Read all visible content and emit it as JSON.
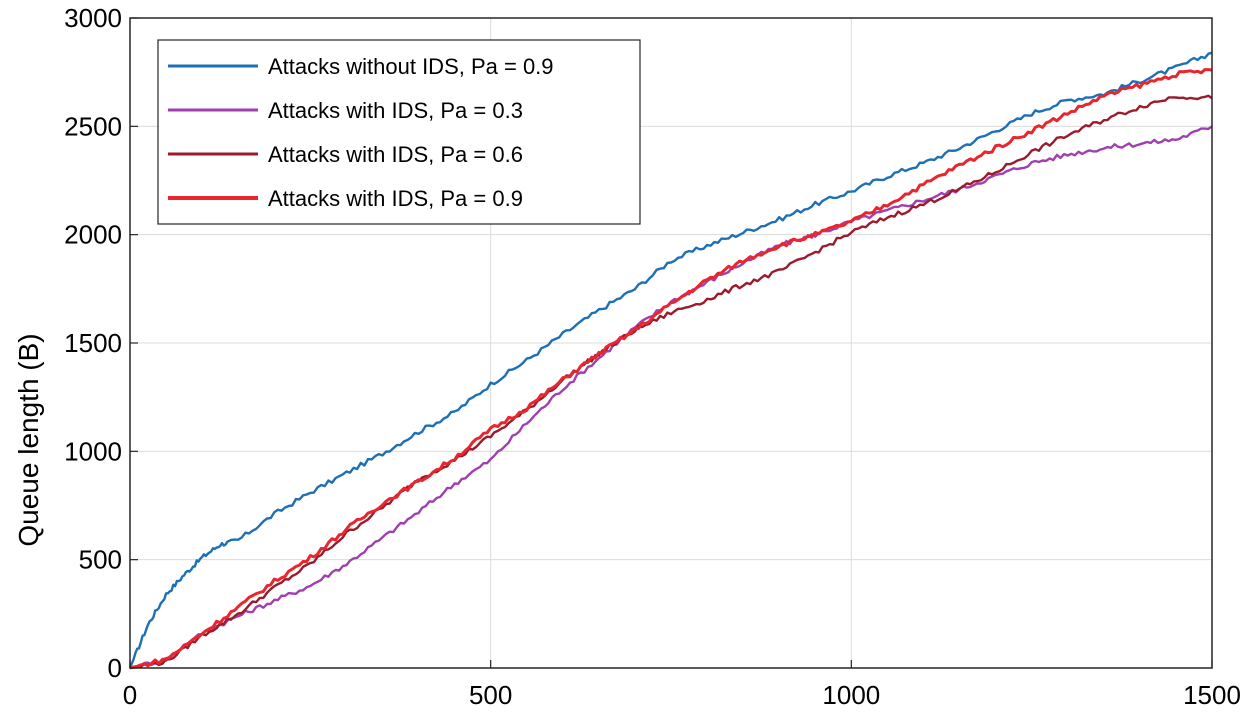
{
  "chart_data": {
    "type": "line",
    "title": "",
    "xlabel": "",
    "ylabel": "Queue length (B)",
    "xlim": [
      0,
      1500
    ],
    "ylim": [
      0,
      3000
    ],
    "xticks": [
      0,
      500,
      1000,
      1500
    ],
    "xtick_labels": [
      "0",
      "500",
      "1000",
      "1500"
    ],
    "yticks": [
      0,
      500,
      1000,
      1500,
      2000,
      2500,
      3000
    ],
    "ytick_labels": [
      "0",
      "500",
      "1000",
      "1500",
      "2000",
      "2500",
      "3000"
    ],
    "grid": true,
    "legend_position": "top-left",
    "series": [
      {
        "name": "Attacks without IDS, Pa = 0.9",
        "color": "#1f6fb5",
        "points": [
          [
            0,
            0
          ],
          [
            25,
            200
          ],
          [
            50,
            340
          ],
          [
            75,
            430
          ],
          [
            100,
            510
          ],
          [
            125,
            570
          ],
          [
            150,
            590
          ],
          [
            200,
            710
          ],
          [
            250,
            810
          ],
          [
            300,
            900
          ],
          [
            350,
            990
          ],
          [
            400,
            1090
          ],
          [
            450,
            1180
          ],
          [
            500,
            1310
          ],
          [
            550,
            1420
          ],
          [
            600,
            1540
          ],
          [
            650,
            1650
          ],
          [
            700,
            1750
          ],
          [
            750,
            1880
          ],
          [
            800,
            1950
          ],
          [
            850,
            2010
          ],
          [
            900,
            2070
          ],
          [
            950,
            2140
          ],
          [
            1000,
            2200
          ],
          [
            1050,
            2270
          ],
          [
            1100,
            2330
          ],
          [
            1150,
            2400
          ],
          [
            1200,
            2480
          ],
          [
            1250,
            2560
          ],
          [
            1300,
            2620
          ],
          [
            1350,
            2650
          ],
          [
            1400,
            2710
          ],
          [
            1450,
            2770
          ],
          [
            1500,
            2840
          ]
        ]
      },
      {
        "name": "Attacks with IDS, Pa = 0.3",
        "color": "#a040b0",
        "points": [
          [
            0,
            0
          ],
          [
            50,
            40
          ],
          [
            100,
            160
          ],
          [
            150,
            240
          ],
          [
            200,
            310
          ],
          [
            250,
            380
          ],
          [
            300,
            480
          ],
          [
            350,
            600
          ],
          [
            400,
            720
          ],
          [
            450,
            850
          ],
          [
            500,
            960
          ],
          [
            550,
            1130
          ],
          [
            600,
            1290
          ],
          [
            650,
            1430
          ],
          [
            700,
            1570
          ],
          [
            750,
            1690
          ],
          [
            800,
            1780
          ],
          [
            850,
            1870
          ],
          [
            900,
            1950
          ],
          [
            950,
            2000
          ],
          [
            1000,
            2060
          ],
          [
            1050,
            2110
          ],
          [
            1100,
            2160
          ],
          [
            1150,
            2210
          ],
          [
            1200,
            2270
          ],
          [
            1250,
            2330
          ],
          [
            1300,
            2370
          ],
          [
            1350,
            2400
          ],
          [
            1400,
            2420
          ],
          [
            1450,
            2440
          ],
          [
            1500,
            2500
          ]
        ]
      },
      {
        "name": "Attacks with IDS, Pa = 0.6",
        "color": "#9b1b2c",
        "points": [
          [
            0,
            0
          ],
          [
            50,
            30
          ],
          [
            100,
            150
          ],
          [
            150,
            250
          ],
          [
            200,
            370
          ],
          [
            250,
            480
          ],
          [
            300,
            620
          ],
          [
            350,
            740
          ],
          [
            400,
            870
          ],
          [
            450,
            960
          ],
          [
            500,
            1070
          ],
          [
            550,
            1190
          ],
          [
            600,
            1330
          ],
          [
            650,
            1450
          ],
          [
            700,
            1560
          ],
          [
            750,
            1640
          ],
          [
            800,
            1700
          ],
          [
            850,
            1770
          ],
          [
            900,
            1830
          ],
          [
            950,
            1920
          ],
          [
            1000,
            2010
          ],
          [
            1050,
            2080
          ],
          [
            1100,
            2140
          ],
          [
            1150,
            2210
          ],
          [
            1200,
            2290
          ],
          [
            1250,
            2380
          ],
          [
            1300,
            2460
          ],
          [
            1350,
            2530
          ],
          [
            1400,
            2590
          ],
          [
            1450,
            2640
          ],
          [
            1500,
            2630
          ]
        ]
      },
      {
        "name": "Attacks with IDS, Pa = 0.9",
        "color": "#e8262e",
        "points": [
          [
            0,
            0
          ],
          [
            50,
            40
          ],
          [
            100,
            160
          ],
          [
            150,
            280
          ],
          [
            200,
            400
          ],
          [
            250,
            510
          ],
          [
            300,
            640
          ],
          [
            350,
            760
          ],
          [
            400,
            860
          ],
          [
            450,
            970
          ],
          [
            500,
            1100
          ],
          [
            550,
            1200
          ],
          [
            600,
            1330
          ],
          [
            650,
            1450
          ],
          [
            700,
            1560
          ],
          [
            750,
            1680
          ],
          [
            800,
            1790
          ],
          [
            850,
            1880
          ],
          [
            900,
            1950
          ],
          [
            950,
            2000
          ],
          [
            1000,
            2060
          ],
          [
            1050,
            2140
          ],
          [
            1100,
            2230
          ],
          [
            1150,
            2320
          ],
          [
            1200,
            2400
          ],
          [
            1250,
            2480
          ],
          [
            1300,
            2560
          ],
          [
            1350,
            2640
          ],
          [
            1400,
            2690
          ],
          [
            1450,
            2740
          ],
          [
            1500,
            2760
          ]
        ]
      }
    ]
  }
}
